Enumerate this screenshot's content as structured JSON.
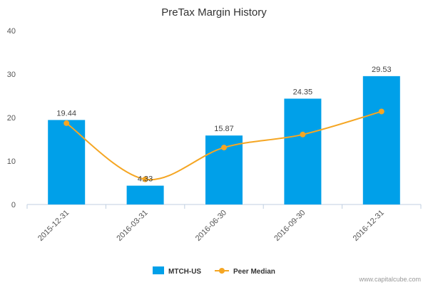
{
  "chart_data": {
    "type": "bar",
    "title": "PreTax Margin History",
    "categories": [
      "2015-12-31",
      "2016-03-31",
      "2016-06-30",
      "2016-09-30",
      "2016-12-31"
    ],
    "series": [
      {
        "name": "MTCH-US",
        "type": "bar",
        "values": [
          19.44,
          4.33,
          15.87,
          24.35,
          29.53
        ],
        "color": "#00a0e9",
        "value_labels": [
          "19.44",
          "4.33",
          "15.87",
          "24.35",
          "29.53"
        ]
      },
      {
        "name": "Peer Median",
        "type": "line",
        "values": [
          18.7,
          5.8,
          13.1,
          16.1,
          21.4
        ],
        "color": "#f5a623"
      }
    ],
    "ylim": [
      0,
      40
    ],
    "yticks": [
      "0",
      "10",
      "20",
      "30",
      "40"
    ],
    "grid": false,
    "legend_position": "bottom"
  },
  "credit": "www.capitalcube.com"
}
